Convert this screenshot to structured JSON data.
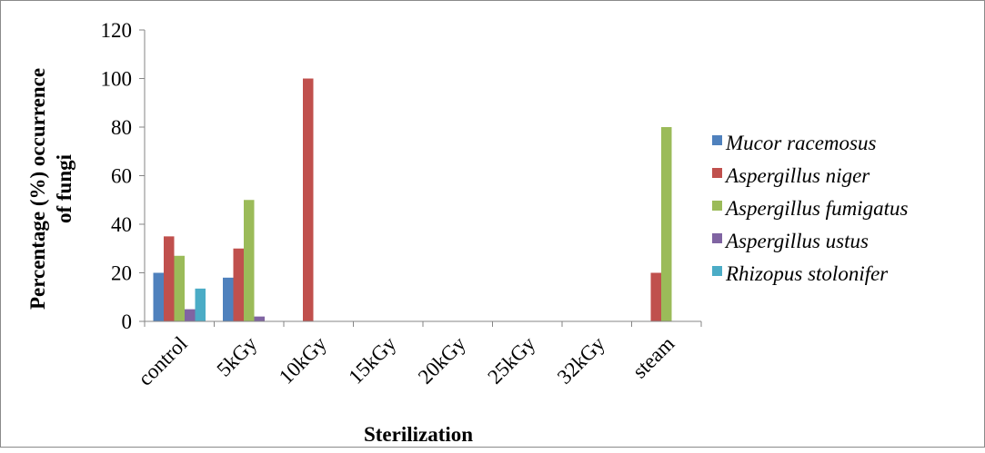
{
  "chart_data": {
    "type": "bar",
    "title": "",
    "xlabel": "Sterilization",
    "ylabel_line1": "Percentage (%) occurrence",
    "ylabel_line2": "of fungi",
    "categories": [
      "control",
      "5kGy",
      "10kGy",
      "15kGy",
      "20kGy",
      "25kGy",
      "32kGy",
      "steam"
    ],
    "ylim": [
      0,
      120
    ],
    "yticks": [
      0,
      20,
      40,
      60,
      80,
      100,
      120
    ],
    "grid": false,
    "legend_position": "right",
    "series": [
      {
        "name": "Mucor racemosus",
        "color": "#4F81BD",
        "values": [
          20,
          18,
          0,
          0,
          0,
          0,
          0,
          0
        ]
      },
      {
        "name": "Aspergillus niger",
        "color": "#C0504D",
        "values": [
          35,
          30,
          100,
          0,
          0,
          0,
          0,
          20
        ]
      },
      {
        "name": "Aspergillus fumigatus",
        "color": "#9BBB59",
        "values": [
          27,
          50,
          0,
          0,
          0,
          0,
          0,
          80
        ]
      },
      {
        "name": "Aspergillus ustus",
        "color": "#8064A2",
        "values": [
          5,
          2,
          0,
          0,
          0,
          0,
          0,
          0
        ]
      },
      {
        "name": "Rhizopus stolonifer",
        "color": "#4BACC6",
        "values": [
          13.5,
          0,
          0,
          0,
          0,
          0,
          0,
          0
        ]
      }
    ]
  }
}
